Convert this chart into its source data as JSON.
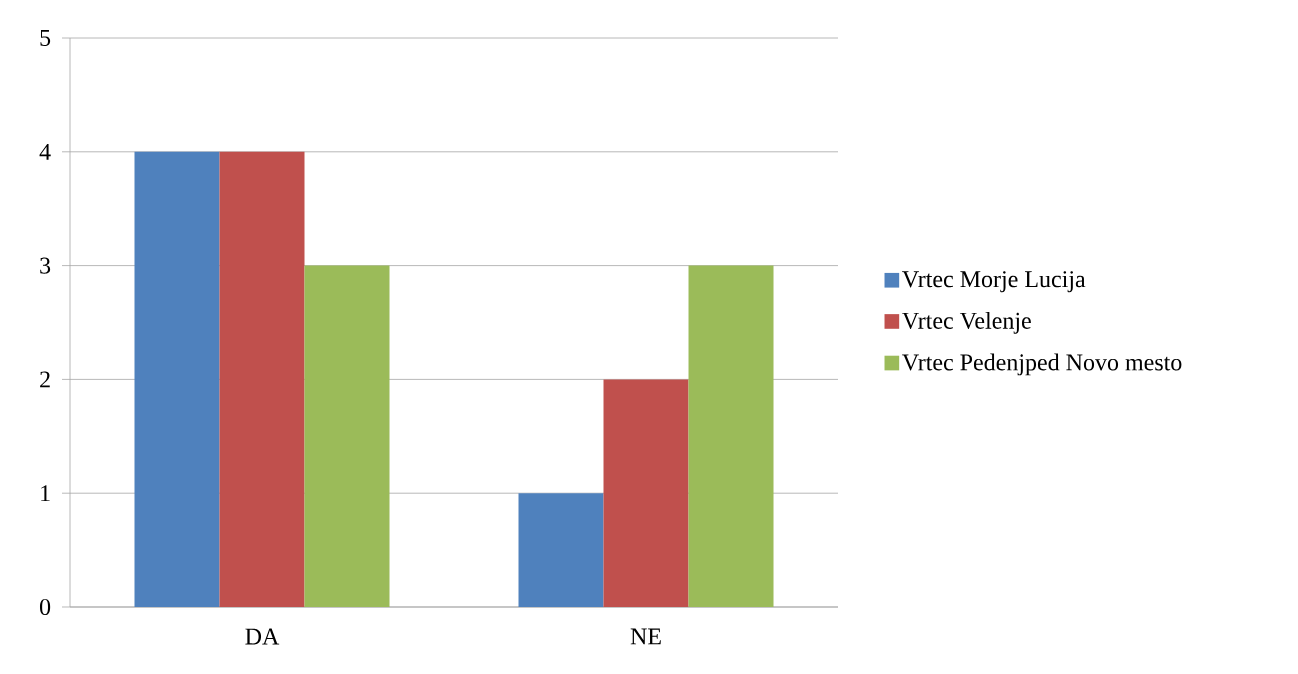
{
  "chart_data": {
    "type": "bar",
    "categories": [
      "DA",
      "NE"
    ],
    "series": [
      {
        "name": "Vrtec Morje Lucija",
        "color": "#4f81bd",
        "values": [
          4,
          1
        ]
      },
      {
        "name": "Vrtec Velenje",
        "color": "#c0504d",
        "values": [
          4,
          2
        ]
      },
      {
        "name": "Vrtec Pedenjped Novo mesto",
        "color": "#9bbb59",
        "values": [
          3,
          3
        ]
      }
    ],
    "ylim": [
      0,
      5
    ],
    "yticks": [
      0,
      1,
      2,
      3,
      4,
      5
    ],
    "grid": "y",
    "legend": "right"
  }
}
